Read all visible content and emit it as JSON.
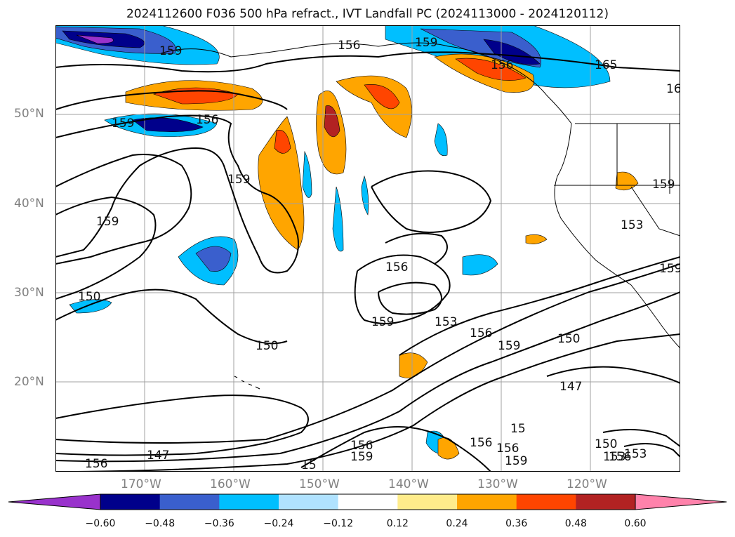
{
  "title": "2024112600 F036 500 hPa refract., IVT Landfall PC (2024113000 - 2024120112)",
  "lat_labels": [
    "50°N",
    "40°N",
    "30°N",
    "20°N"
  ],
  "lon_labels": [
    "170°W",
    "160°W",
    "150°W",
    "140°W",
    "130°W",
    "120°W"
  ],
  "contour_labels": [
    "159",
    "156",
    "156",
    "159",
    "165",
    "16",
    "159",
    "156",
    "159",
    "159",
    "150",
    "156",
    "159",
    "153",
    "156",
    "159",
    "150",
    "147",
    "153",
    "159",
    "150",
    "147",
    "156",
    "156",
    "159",
    "15",
    "156",
    "159",
    "153",
    "159",
    "150",
    "156",
    "156",
    "153",
    "15"
  ],
  "colorbar": {
    "ticks": [
      "−0.60",
      "−0.48",
      "−0.36",
      "−0.24",
      "−0.12",
      "0.12",
      "0.24",
      "0.36",
      "0.48",
      "0.60"
    ],
    "colors": [
      "#9932cc",
      "#00008b",
      "#3a5fcd",
      "#00bfff",
      "#b0e2ff",
      "#ffffff",
      "#ffec8b",
      "#ffa500",
      "#ff4500",
      "#b22222",
      "#ff82ab"
    ]
  }
}
